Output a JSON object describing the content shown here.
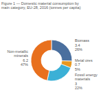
{
  "chart_data": {
    "type": "pie",
    "title": "Figure 1 — Domestic material consumption by\nmain category, EU-28, 2016 (tonnes per capita)",
    "categories": [
      "Biomass",
      "Metal ores",
      "Fossil energy\nmaterials",
      "Non-metallic\nminerals"
    ],
    "values": [
      3.4,
      0.7,
      3,
      6.2
    ],
    "percentage_labels": [
      "26%",
      "5%",
      "22%",
      "47%"
    ],
    "colors": [
      "#4a6f9e",
      "#e8971e",
      "#3bb0d6",
      "#e8701e"
    ],
    "data_labels": true
  }
}
